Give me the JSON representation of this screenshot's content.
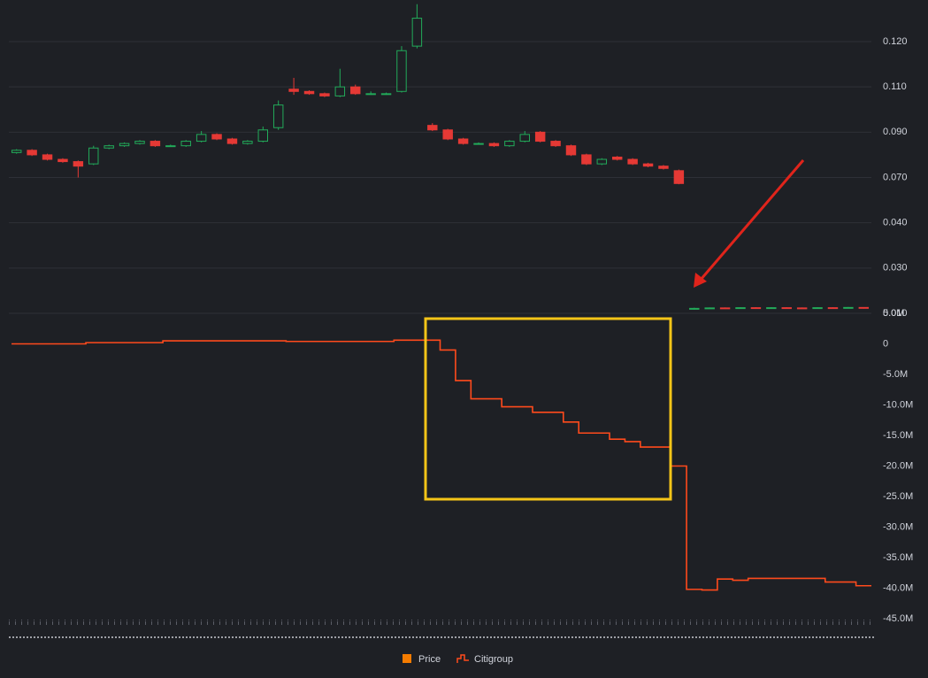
{
  "chart_data": [
    {
      "type": "candlestick",
      "series": [
        {
          "name": "Price",
          "color": "#f57c00",
          "up_color": "#22ab5a",
          "down_color": "#e53935",
          "open": [
            0.081,
            0.082,
            0.08,
            0.078,
            0.077,
            0.076,
            0.083,
            0.084,
            0.085,
            0.086,
            0.084,
            0.084,
            0.086,
            0.089,
            0.087,
            0.085,
            0.086,
            0.092,
            0.109,
            0.108,
            0.107,
            0.106,
            0.11,
            0.107,
            0.107,
            0.108,
            0.119,
            0.093,
            0.091,
            0.087,
            0.085,
            0.085,
            0.084,
            0.086,
            0.09,
            0.086,
            0.084,
            0.08,
            0.076,
            0.079,
            0.078,
            0.076,
            0.075,
            0.073,
            0.0118,
            0.0122,
            0.0124,
            0.0123,
            0.0125,
            0.0124,
            0.0125,
            0.0124,
            0.0123,
            0.0125,
            0.0124,
            0.0126
          ],
          "high": [
            0.0825,
            0.0825,
            0.0805,
            0.0785,
            0.0775,
            0.084,
            0.0845,
            0.0855,
            0.0865,
            0.0865,
            0.0845,
            0.0865,
            0.0905,
            0.0895,
            0.0875,
            0.0865,
            0.0925,
            0.104,
            0.112,
            0.1085,
            0.1075,
            0.114,
            0.1105,
            0.108,
            0.1075,
            0.119,
            0.128,
            0.094,
            0.0915,
            0.0875,
            0.0855,
            0.0855,
            0.0865,
            0.0905,
            0.0905,
            0.0865,
            0.0845,
            0.0805,
            0.0785,
            0.0795,
            0.0785,
            0.0765,
            0.0755,
            0.0735,
            0.0125,
            0.0126,
            0.0126,
            0.0127,
            0.0127,
            0.0127,
            0.0127,
            0.0126,
            0.0127,
            0.0127,
            0.0128,
            0.0127
          ],
          "low": [
            0.0805,
            0.0795,
            0.0775,
            0.0765,
            0.07,
            0.0755,
            0.0825,
            0.0835,
            0.0845,
            0.0835,
            0.0835,
            0.0835,
            0.0855,
            0.0865,
            0.0845,
            0.0845,
            0.0855,
            0.091,
            0.1065,
            0.1065,
            0.1055,
            0.1055,
            0.1065,
            0.1065,
            0.1065,
            0.1075,
            0.1185,
            0.0905,
            0.0865,
            0.0845,
            0.0845,
            0.0835,
            0.0835,
            0.0855,
            0.0855,
            0.0835,
            0.0795,
            0.0755,
            0.0755,
            0.0775,
            0.0755,
            0.0745,
            0.0735,
            0.0655,
            0.0116,
            0.0121,
            0.0121,
            0.0122,
            0.0122,
            0.0123,
            0.0122,
            0.0121,
            0.0122,
            0.0122,
            0.0123,
            0.0121
          ],
          "close": [
            0.082,
            0.08,
            0.078,
            0.077,
            0.075,
            0.083,
            0.084,
            0.085,
            0.086,
            0.084,
            0.084,
            0.086,
            0.089,
            0.087,
            0.085,
            0.086,
            0.091,
            0.102,
            0.108,
            0.107,
            0.106,
            0.11,
            0.107,
            0.107,
            0.107,
            0.118,
            0.125,
            0.091,
            0.087,
            0.085,
            0.085,
            0.084,
            0.086,
            0.089,
            0.086,
            0.084,
            0.08,
            0.076,
            0.078,
            0.078,
            0.076,
            0.075,
            0.074,
            0.066,
            0.0122,
            0.0124,
            0.0123,
            0.0125,
            0.0124,
            0.0125,
            0.0124,
            0.0123,
            0.0125,
            0.0124,
            0.0126,
            0.0123
          ]
        }
      ],
      "ylim": [
        0.01,
        0.127
      ],
      "yticks": [
        {
          "value": 0.01,
          "label": "0.010"
        },
        {
          "value": 0.03,
          "label": "0.030"
        },
        {
          "value": 0.04,
          "label": "0.040"
        },
        {
          "value": 0.07,
          "label": "0.070"
        },
        {
          "value": 0.09,
          "label": "0.090"
        },
        {
          "value": 0.11,
          "label": "0.110"
        },
        {
          "value": 0.12,
          "label": "0.120"
        }
      ],
      "grid": true
    },
    {
      "type": "line",
      "step": true,
      "series": [
        {
          "name": "Citigroup",
          "color": "#ff4a1c",
          "values": [
            0,
            0,
            0,
            0,
            0,
            200000,
            200000,
            200000,
            200000,
            200000,
            500000,
            500000,
            500000,
            500000,
            500000,
            500000,
            500000,
            500000,
            400000,
            400000,
            400000,
            400000,
            400000,
            400000,
            400000,
            600000,
            600000,
            600000,
            -1000000,
            -6000000,
            -9000000,
            -9000000,
            -10300000,
            -10300000,
            -11200000,
            -11200000,
            -12800000,
            -14600000,
            -14600000,
            -15600000,
            -16000000,
            -16900000,
            -16900000,
            -20000000,
            -40200000,
            -40300000,
            -38500000,
            -38700000,
            -38400000,
            -38400000,
            -38400000,
            -38400000,
            -38400000,
            -39000000,
            -39000000,
            -39600000
          ]
        }
      ],
      "ylim": [
        -45000000,
        5000000
      ],
      "yticks": [
        {
          "value": 5000000,
          "label": "5.0M"
        },
        0,
        {
          "value": -5000000,
          "label": "-5.0M"
        },
        {
          "value": -10000000,
          "label": "-10.0M"
        },
        {
          "value": -15000000,
          "label": "-15.0M"
        },
        {
          "value": -20000000,
          "label": "-20.0M"
        },
        {
          "value": -25000000,
          "label": "-25.0M"
        },
        {
          "value": -30000000,
          "label": "-30.0M"
        },
        {
          "value": -35000000,
          "label": "-35.0M"
        },
        {
          "value": -40000000,
          "label": "-40.0M"
        },
        {
          "value": -45000000,
          "label": "-45.0M"
        }
      ],
      "grid": false
    }
  ]
}
